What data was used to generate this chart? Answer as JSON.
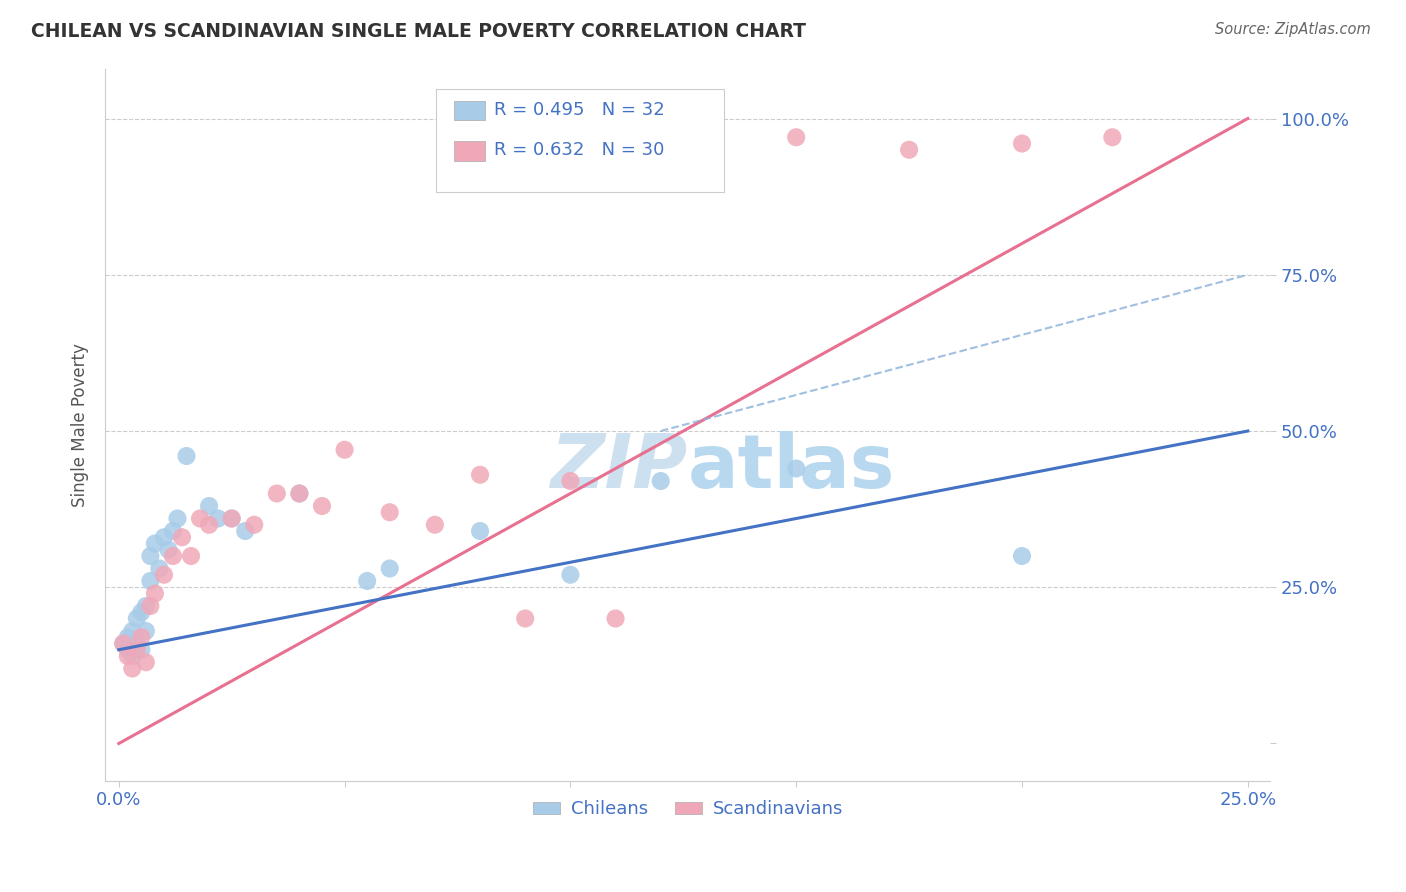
{
  "title": "CHILEAN VS SCANDINAVIAN SINGLE MALE POVERTY CORRELATION CHART",
  "source": "Source: ZipAtlas.com",
  "ylabel": "Single Male Poverty",
  "R_blue": 0.495,
  "N_blue": 32,
  "R_pink": 0.632,
  "N_pink": 30,
  "blue_color": "#a8cce8",
  "pink_color": "#f0a8b8",
  "line_blue_color": "#4472c4",
  "line_pink_color": "#e87090",
  "line_dash_color": "#8ab0d8",
  "blue_line_x": [
    0.0,
    0.25
  ],
  "blue_line_y": [
    0.15,
    0.5
  ],
  "pink_line_x": [
    0.0,
    0.25
  ],
  "pink_line_y": [
    0.0,
    1.0
  ],
  "dash_line_x": [
    0.12,
    0.25
  ],
  "dash_line_y": [
    0.5,
    0.75
  ],
  "chilean_x": [
    0.001,
    0.002,
    0.002,
    0.003,
    0.003,
    0.004,
    0.004,
    0.005,
    0.005,
    0.006,
    0.006,
    0.007,
    0.007,
    0.008,
    0.009,
    0.01,
    0.011,
    0.012,
    0.013,
    0.015,
    0.02,
    0.022,
    0.025,
    0.028,
    0.04,
    0.055,
    0.06,
    0.08,
    0.1,
    0.12,
    0.15,
    0.2
  ],
  "chilean_y": [
    0.16,
    0.17,
    0.15,
    0.18,
    0.14,
    0.2,
    0.16,
    0.21,
    0.15,
    0.22,
    0.18,
    0.3,
    0.26,
    0.32,
    0.28,
    0.33,
    0.31,
    0.34,
    0.36,
    0.46,
    0.38,
    0.36,
    0.36,
    0.34,
    0.4,
    0.26,
    0.28,
    0.34,
    0.27,
    0.42,
    0.44,
    0.3
  ],
  "scand_x": [
    0.001,
    0.002,
    0.003,
    0.004,
    0.005,
    0.006,
    0.007,
    0.008,
    0.01,
    0.012,
    0.014,
    0.016,
    0.018,
    0.02,
    0.025,
    0.03,
    0.035,
    0.04,
    0.045,
    0.05,
    0.06,
    0.07,
    0.08,
    0.09,
    0.1,
    0.11,
    0.15,
    0.175,
    0.2,
    0.22
  ],
  "scand_y": [
    0.16,
    0.14,
    0.12,
    0.15,
    0.17,
    0.13,
    0.22,
    0.24,
    0.27,
    0.3,
    0.33,
    0.3,
    0.36,
    0.35,
    0.36,
    0.35,
    0.4,
    0.4,
    0.38,
    0.47,
    0.37,
    0.35,
    0.43,
    0.2,
    0.42,
    0.2,
    0.97,
    0.95,
    0.96,
    0.97
  ],
  "ytick_positions": [
    0.0,
    0.25,
    0.5,
    0.75,
    1.0
  ],
  "ytick_labels": [
    "",
    "25.0%",
    "50.0%",
    "75.0%",
    "100.0%"
  ],
  "xtick_positions": [
    0.0,
    0.05,
    0.1,
    0.15,
    0.2,
    0.25
  ],
  "xtick_labels": [
    "0.0%",
    "",
    "",
    "",
    "",
    "25.0%"
  ],
  "xlim": [
    -0.003,
    0.255
  ],
  "ylim": [
    -0.06,
    1.08
  ],
  "tick_color": "#4472c4",
  "watermark_color": "#cce0f0",
  "bg_color": "#ffffff"
}
